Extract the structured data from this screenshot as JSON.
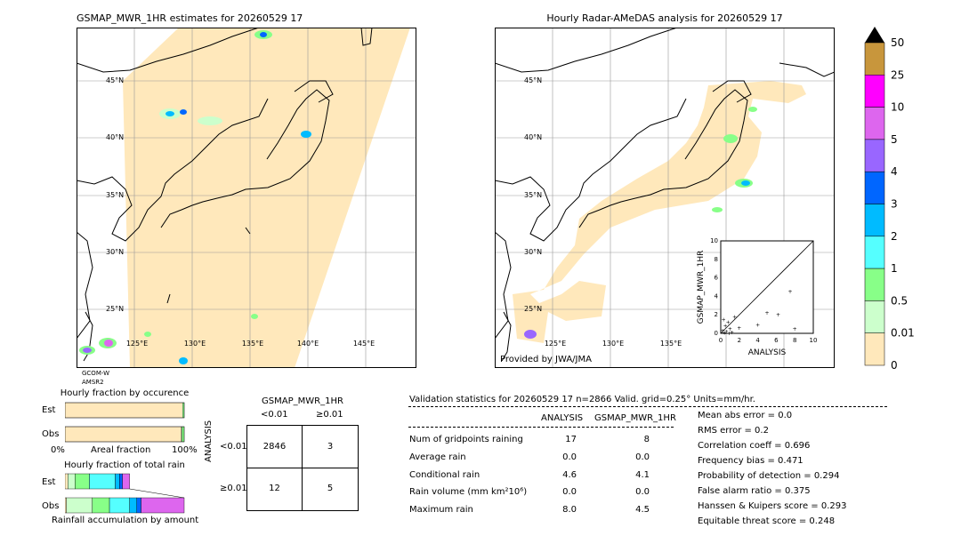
{
  "left_map": {
    "title": "GSMAP_MWR_1HR estimates for 20260529 17",
    "lat_labels": [
      "45°N",
      "40°N",
      "35°N",
      "30°N",
      "25°N"
    ],
    "lon_labels": [
      "125°E",
      "130°E",
      "135°E",
      "140°E",
      "145°E"
    ],
    "sat1": "GCOM-W",
    "sat2": "AMSR2"
  },
  "right_map": {
    "title": "Hourly Radar-AMeDAS analysis for 20260529 17",
    "lat_labels": [
      "45°N",
      "40°N",
      "35°N",
      "30°N",
      "25°N"
    ],
    "lon_labels": [
      "125°E",
      "130°E",
      "135°E"
    ],
    "provided": "Provided by JWA/JMA"
  },
  "colorbar": {
    "labels": [
      "50",
      "25",
      "10",
      "5",
      "4",
      "3",
      "2",
      "1",
      "0.5",
      "0.01",
      "0"
    ],
    "colors": [
      "#c8963c",
      "#ff00ff",
      "#dd66ee",
      "#9966ff",
      "#0066ff",
      "#00bbff",
      "#55ffff",
      "#88ff88",
      "#ccffcc",
      "#ffe8bb"
    ],
    "over_color": "#000000"
  },
  "inset": {
    "ylabel": "GSMAP_MWR_1HR",
    "xlabel": "ANALYSIS",
    "ticks": [
      "0",
      "2",
      "4",
      "6",
      "8",
      "10"
    ]
  },
  "occurrence": {
    "title": "Hourly fraction by occurence",
    "est_label": "Est",
    "obs_label": "Obs",
    "axis_left": "0%",
    "axis_mid": "Areal fraction",
    "axis_right": "100%"
  },
  "total_rain": {
    "title": "Hourly fraction of total rain",
    "est_label": "Est",
    "obs_label": "Obs",
    "axis_caption": "Rainfall accumulation by amount"
  },
  "contingency": {
    "title": "GSMAP_MWR_1HR",
    "col1": "<0.01",
    "col2": "≥0.01",
    "row_axis": "ANALYSIS",
    "row1": "<0.01",
    "row2": "≥0.01",
    "c11": "2846",
    "c12": "3",
    "c21": "12",
    "c22": "5"
  },
  "validation": {
    "header": "Validation statistics for 20260529 17  n=2866 Valid. grid=0.25° Units=mm/hr.",
    "col_analysis": "ANALYSIS",
    "col_gsmap": "GSMAP_MWR_1HR",
    "rows": [
      {
        "label": "Num of gridpoints raining",
        "a": "17",
        "g": "8"
      },
      {
        "label": "Average rain",
        "a": "0.0",
        "g": "0.0"
      },
      {
        "label": "Conditional rain",
        "a": "4.6",
        "g": "4.1"
      },
      {
        "label": "Rain volume (mm km²10⁶)",
        "a": "0.0",
        "g": "0.0"
      },
      {
        "label": "Maximum rain",
        "a": "8.0",
        "g": "4.5"
      }
    ],
    "scores": [
      "Mean abs error =    0.0",
      "RMS error =    0.2",
      "Correlation coeff =  0.696",
      "Frequency bias =  0.471",
      "Probability of detection =  0.294",
      "False alarm ratio =  0.375",
      "Hanssen & Kuipers score =  0.293",
      "Equitable threat score =  0.248"
    ]
  },
  "chart_data": [
    {
      "type": "scatter",
      "xlabel": "ANALYSIS",
      "ylabel": "GSMAP_MWR_1HR",
      "xlim": [
        0,
        10
      ],
      "ylim": [
        0,
        10
      ],
      "points": [
        {
          "x": 0.2,
          "y": 0.3
        },
        {
          "x": 0.3,
          "y": 1.5
        },
        {
          "x": 0.5,
          "y": 0.8
        },
        {
          "x": 0.6,
          "y": 0.2
        },
        {
          "x": 0.8,
          "y": 1.2
        },
        {
          "x": 1.0,
          "y": 0.5
        },
        {
          "x": 1.2,
          "y": 0.1
        },
        {
          "x": 1.5,
          "y": 1.8
        },
        {
          "x": 2.0,
          "y": 0.6
        },
        {
          "x": 4.0,
          "y": 0.9
        },
        {
          "x": 5.0,
          "y": 2.2
        },
        {
          "x": 6.2,
          "y": 2.0
        },
        {
          "x": 7.5,
          "y": 4.5
        },
        {
          "x": 8.0,
          "y": 0.5
        },
        {
          "x": 0.4,
          "y": 0.05
        },
        {
          "x": 0.9,
          "y": 0.0
        }
      ]
    },
    {
      "type": "bar",
      "title": "Hourly fraction by occurence",
      "categories": [
        "Est",
        "Obs"
      ],
      "series": [
        {
          "values": [
            0.985,
            0.975
          ]
        },
        {
          "values": [
            0.003,
            0.006
          ]
        },
        {
          "values": [
            0.012,
            0.019
          ]
        }
      ]
    },
    {
      "type": "bar",
      "title": "Hourly fraction of total rain",
      "categories": [
        "Est",
        "Obs"
      ],
      "series": [
        {
          "values": [
            0.02,
            0.01
          ]
        },
        {
          "values": [
            0.05,
            0.18
          ]
        },
        {
          "values": [
            0.1,
            0.12
          ]
        },
        {
          "values": [
            0.18,
            0.14
          ]
        },
        {
          "values": [
            0.03,
            0.05
          ]
        },
        {
          "values": [
            0.02,
            0.03
          ]
        },
        {
          "values": [
            0.05,
            0.3
          ]
        }
      ]
    }
  ]
}
